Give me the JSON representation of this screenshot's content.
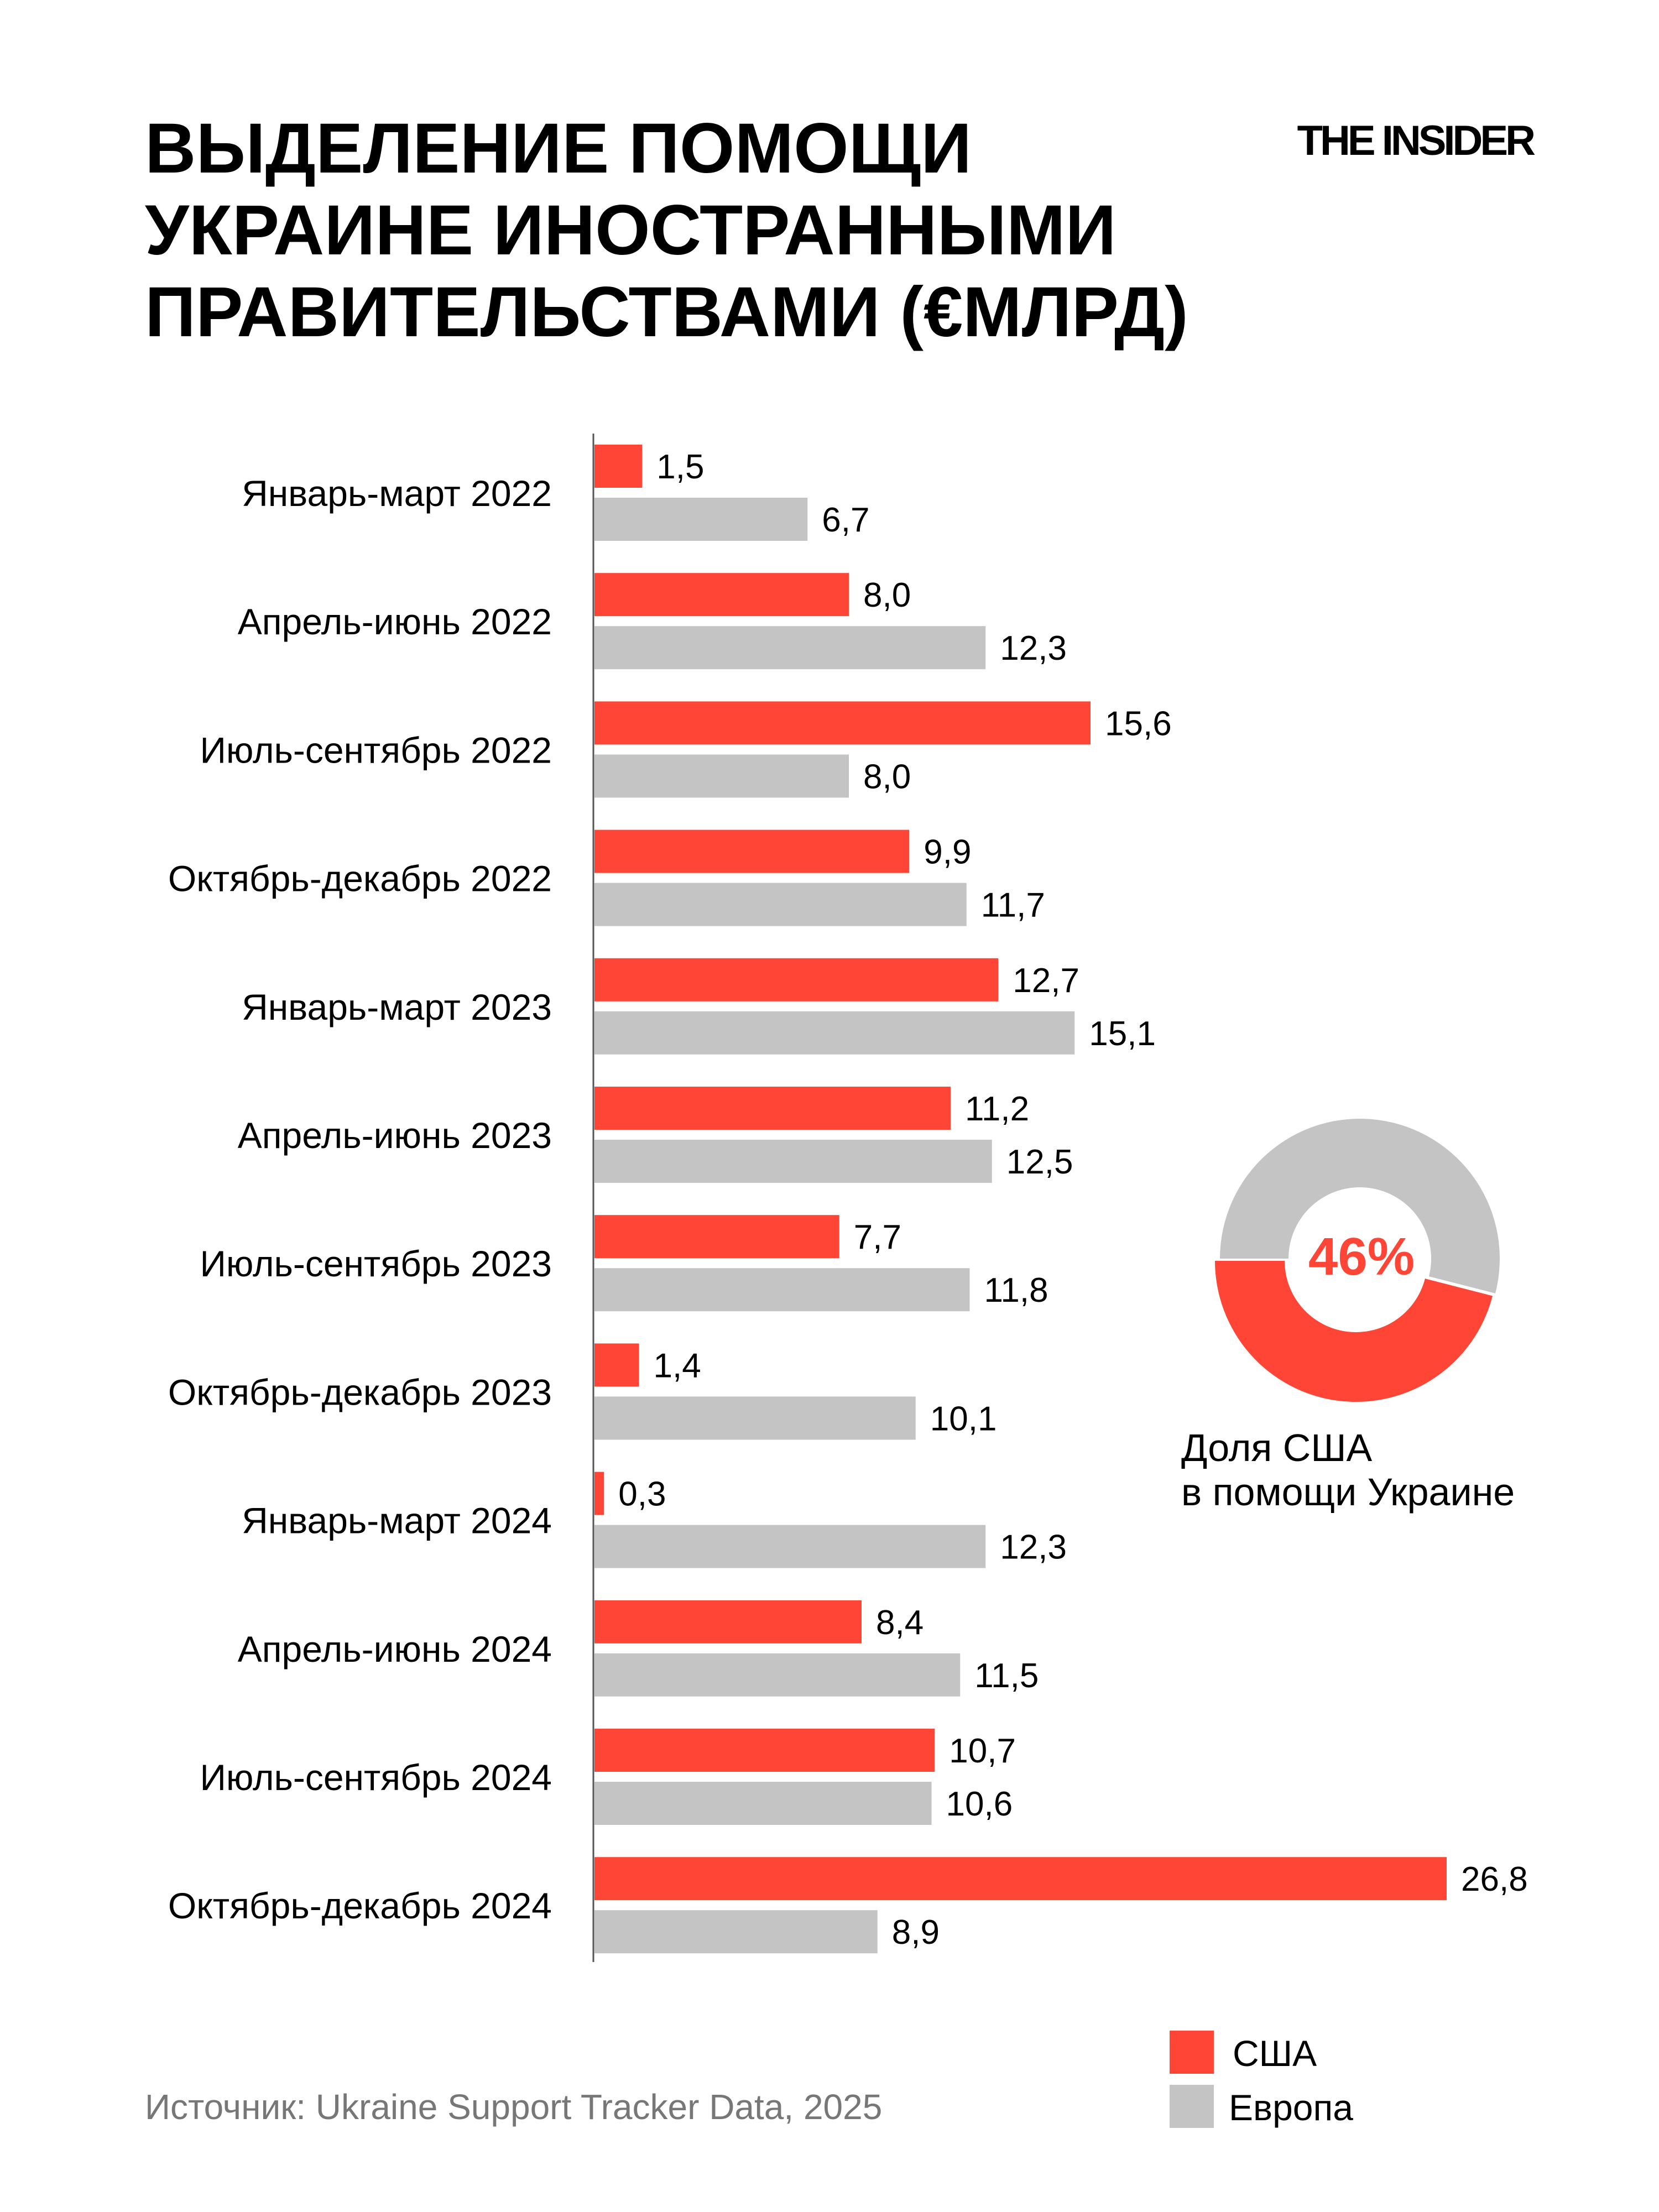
{
  "title_lines": [
    "ВЫДЕЛЕНИЕ ПОМОЩИ",
    "УКРАИНЕ ИНОСТРАННЫМИ",
    "ПРАВИТЕЛЬСТВАМИ (€МЛРД)"
  ],
  "logo": "THE INSIDER",
  "source": "Источник: Ukraine Support Tracker Data, 2025",
  "donut": {
    "value_label": "46%",
    "share": 0.46,
    "caption_lines": [
      "Доля США",
      "в помощи Украине"
    ]
  },
  "colors": {
    "usa": "#ff4536",
    "europe": "#c4c4c4",
    "text": "#000000",
    "source": "#777777"
  },
  "chart_data": {
    "type": "bar",
    "orientation": "horizontal",
    "categories": [
      "Январь-март 2022",
      "Апрель-июнь 2022",
      "Июль-сентябрь 2022",
      "Октябрь-декабрь 2022",
      "Январь-март 2023",
      "Апрель-июнь 2023",
      "Июль-сентябрь 2023",
      "Октябрь-декабрь 2023",
      "Январь-март 2024",
      "Апрель-июнь 2024",
      "Июль-сентябрь 2024",
      "Октябрь-декабрь 2024"
    ],
    "series": [
      {
        "name": "США",
        "values": [
          1.5,
          8.0,
          15.6,
          9.9,
          12.7,
          11.2,
          7.7,
          1.4,
          0.3,
          8.4,
          10.7,
          26.8
        ],
        "labels": [
          "1,5",
          "8,0",
          "15,6",
          "9,9",
          "12,7",
          "11,2",
          "7,7",
          "1,4",
          "0,3",
          "8,4",
          "10,7",
          "26,8"
        ]
      },
      {
        "name": "Европа",
        "values": [
          6.7,
          12.3,
          8.0,
          11.7,
          15.1,
          12.5,
          11.8,
          10.1,
          12.3,
          11.5,
          10.6,
          8.9
        ],
        "labels": [
          "6,7",
          "12,3",
          "8,0",
          "11,7",
          "15,1",
          "12,5",
          "11,8",
          "10,1",
          "12,3",
          "11,5",
          "10,6",
          "8,9"
        ]
      }
    ],
    "legend": [
      "США",
      "Европа"
    ],
    "legend_position": "bottom-right",
    "grid": false
  }
}
